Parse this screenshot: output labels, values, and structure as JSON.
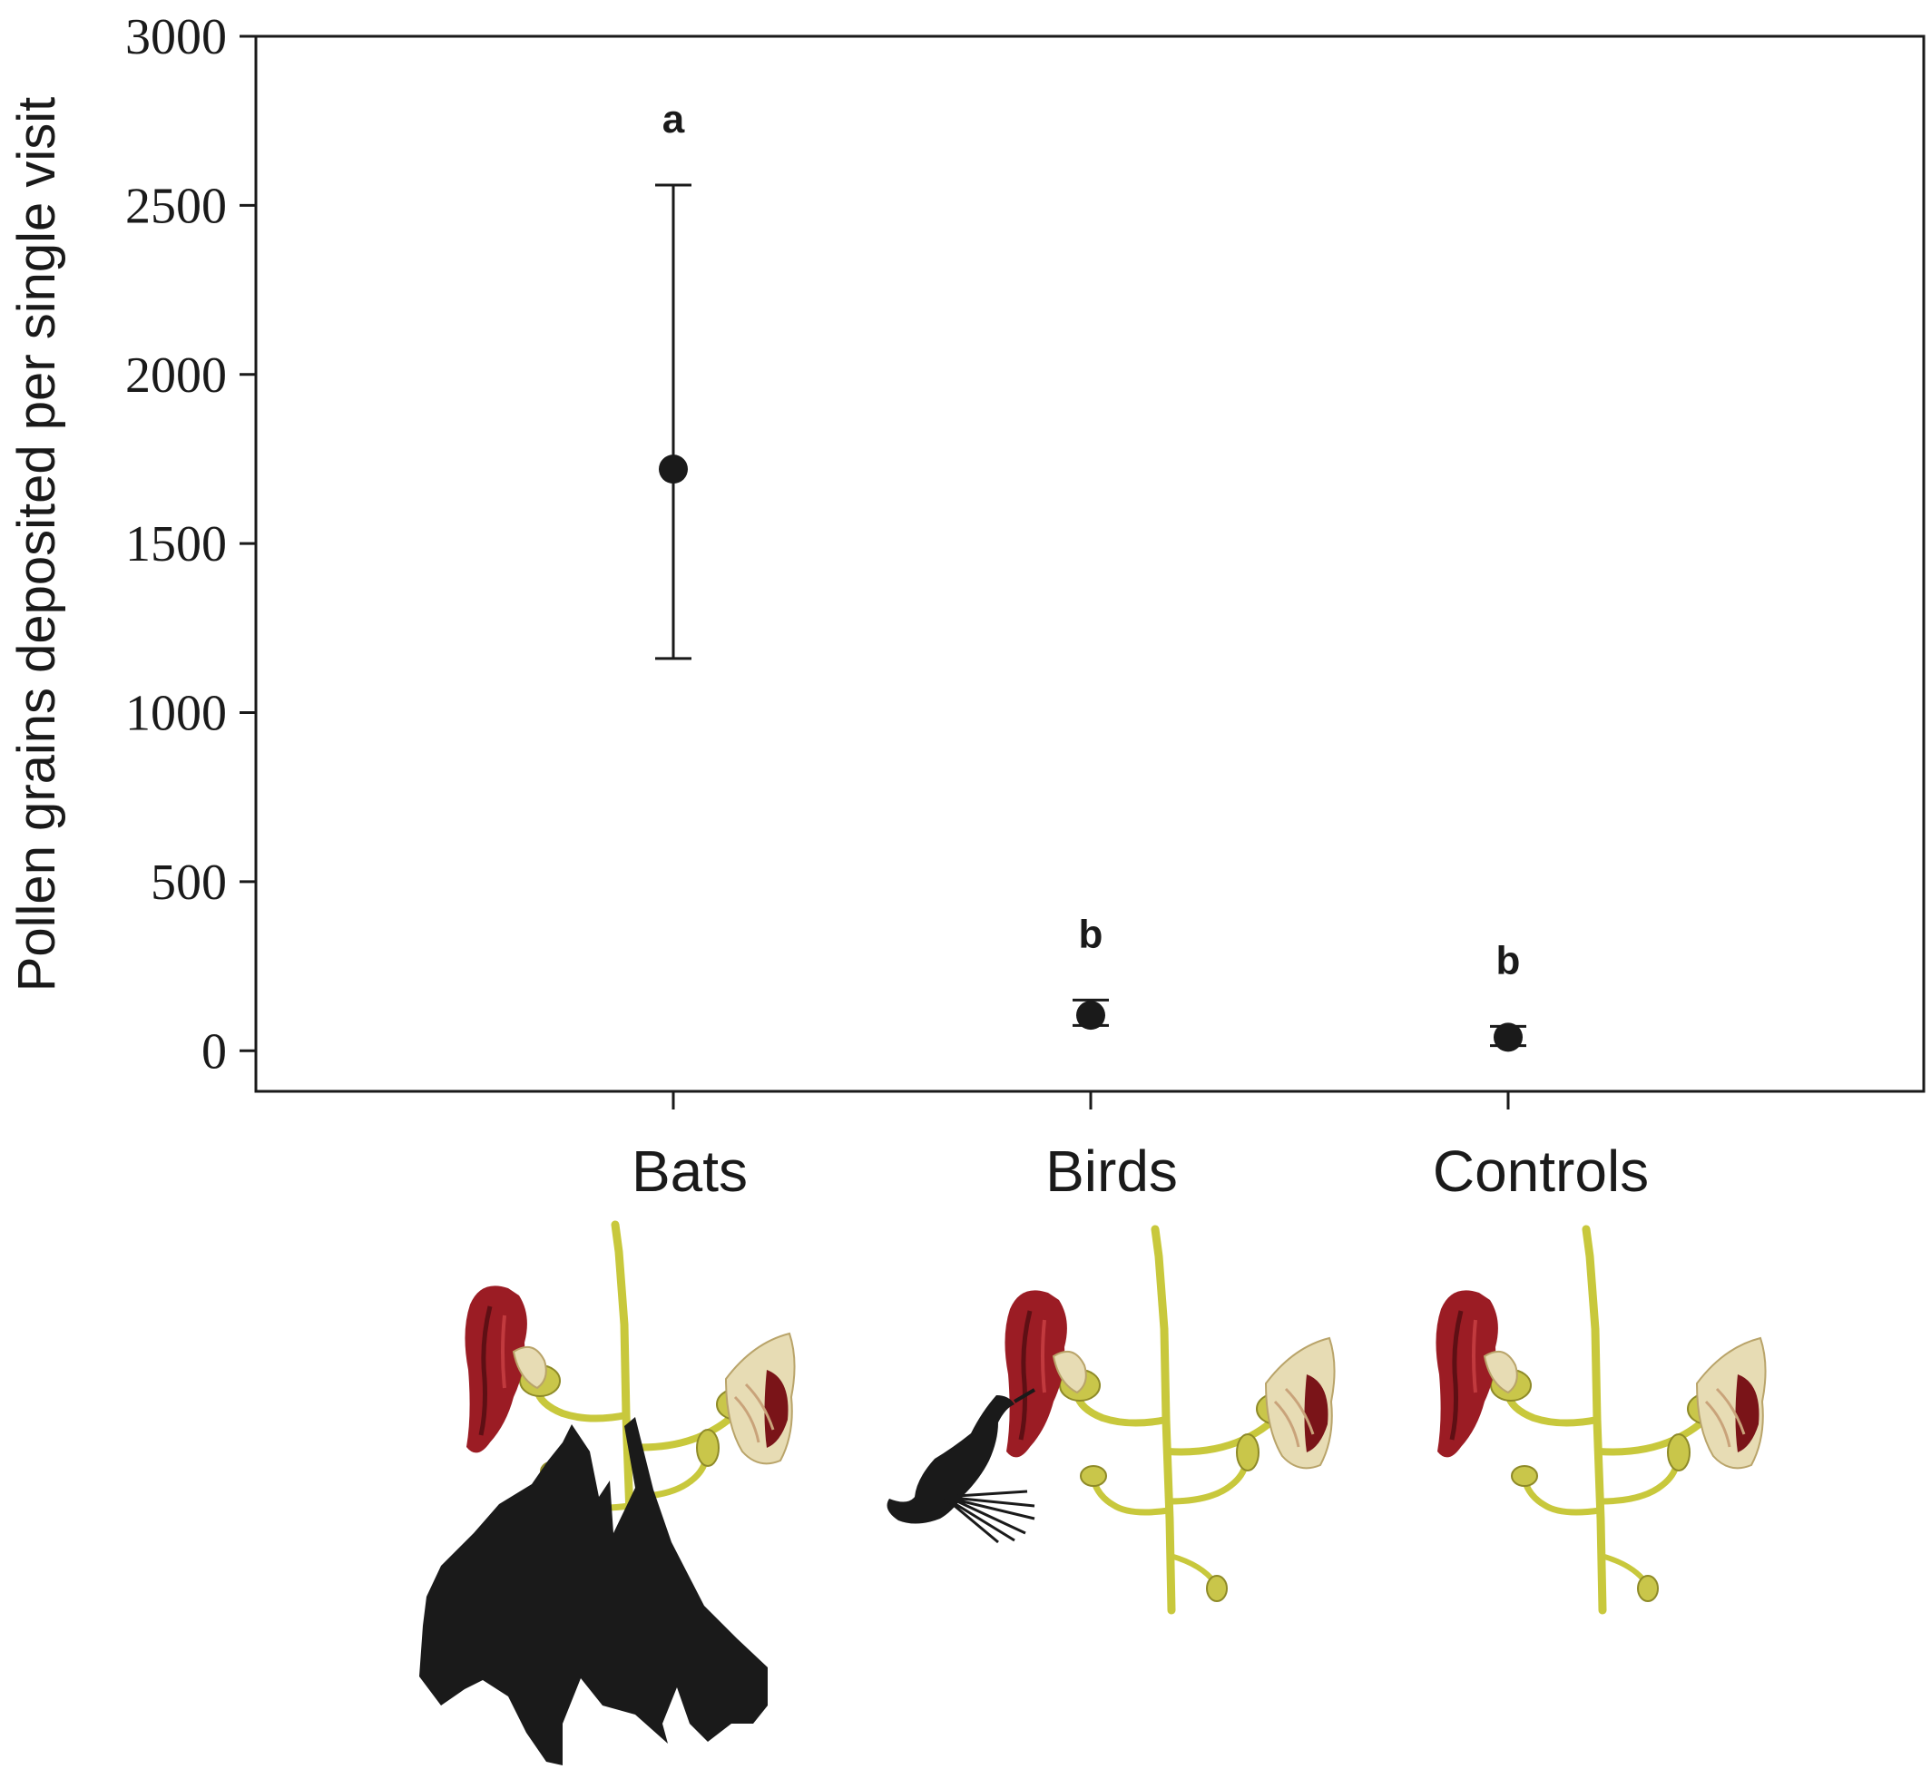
{
  "chart_data": {
    "type": "scatter",
    "ylabel": "Pollen grains deposited per single visit",
    "xlabel": "",
    "ylim": [
      -120,
      3000
    ],
    "yticks": [
      0,
      500,
      1000,
      1500,
      2000,
      2500,
      3000
    ],
    "categories": [
      "Bats",
      "Birds",
      "Controls"
    ],
    "values": [
      1720,
      105,
      40
    ],
    "error_upper": [
      2560,
      150,
      72
    ],
    "error_lower": [
      1160,
      75,
      15
    ],
    "significance_letters": [
      "a",
      "b",
      "b"
    ],
    "grid": false,
    "legend": "none"
  },
  "colors": {
    "ink": "#1a1a1a",
    "flower_red": "#9b1c24",
    "flower_dark": "#5e0f14",
    "flower_cream": "#e7dcb4",
    "stem_green": "#c8c83c",
    "bud_green": "#c9c64a"
  },
  "illustrations": [
    {
      "category": "Bats",
      "icons": [
        "flowering-branch-icon",
        "bat-silhouette-icon"
      ]
    },
    {
      "category": "Birds",
      "icons": [
        "flowering-branch-icon",
        "sunbird-silhouette-icon"
      ]
    },
    {
      "category": "Controls",
      "icons": [
        "flowering-branch-icon"
      ]
    }
  ]
}
